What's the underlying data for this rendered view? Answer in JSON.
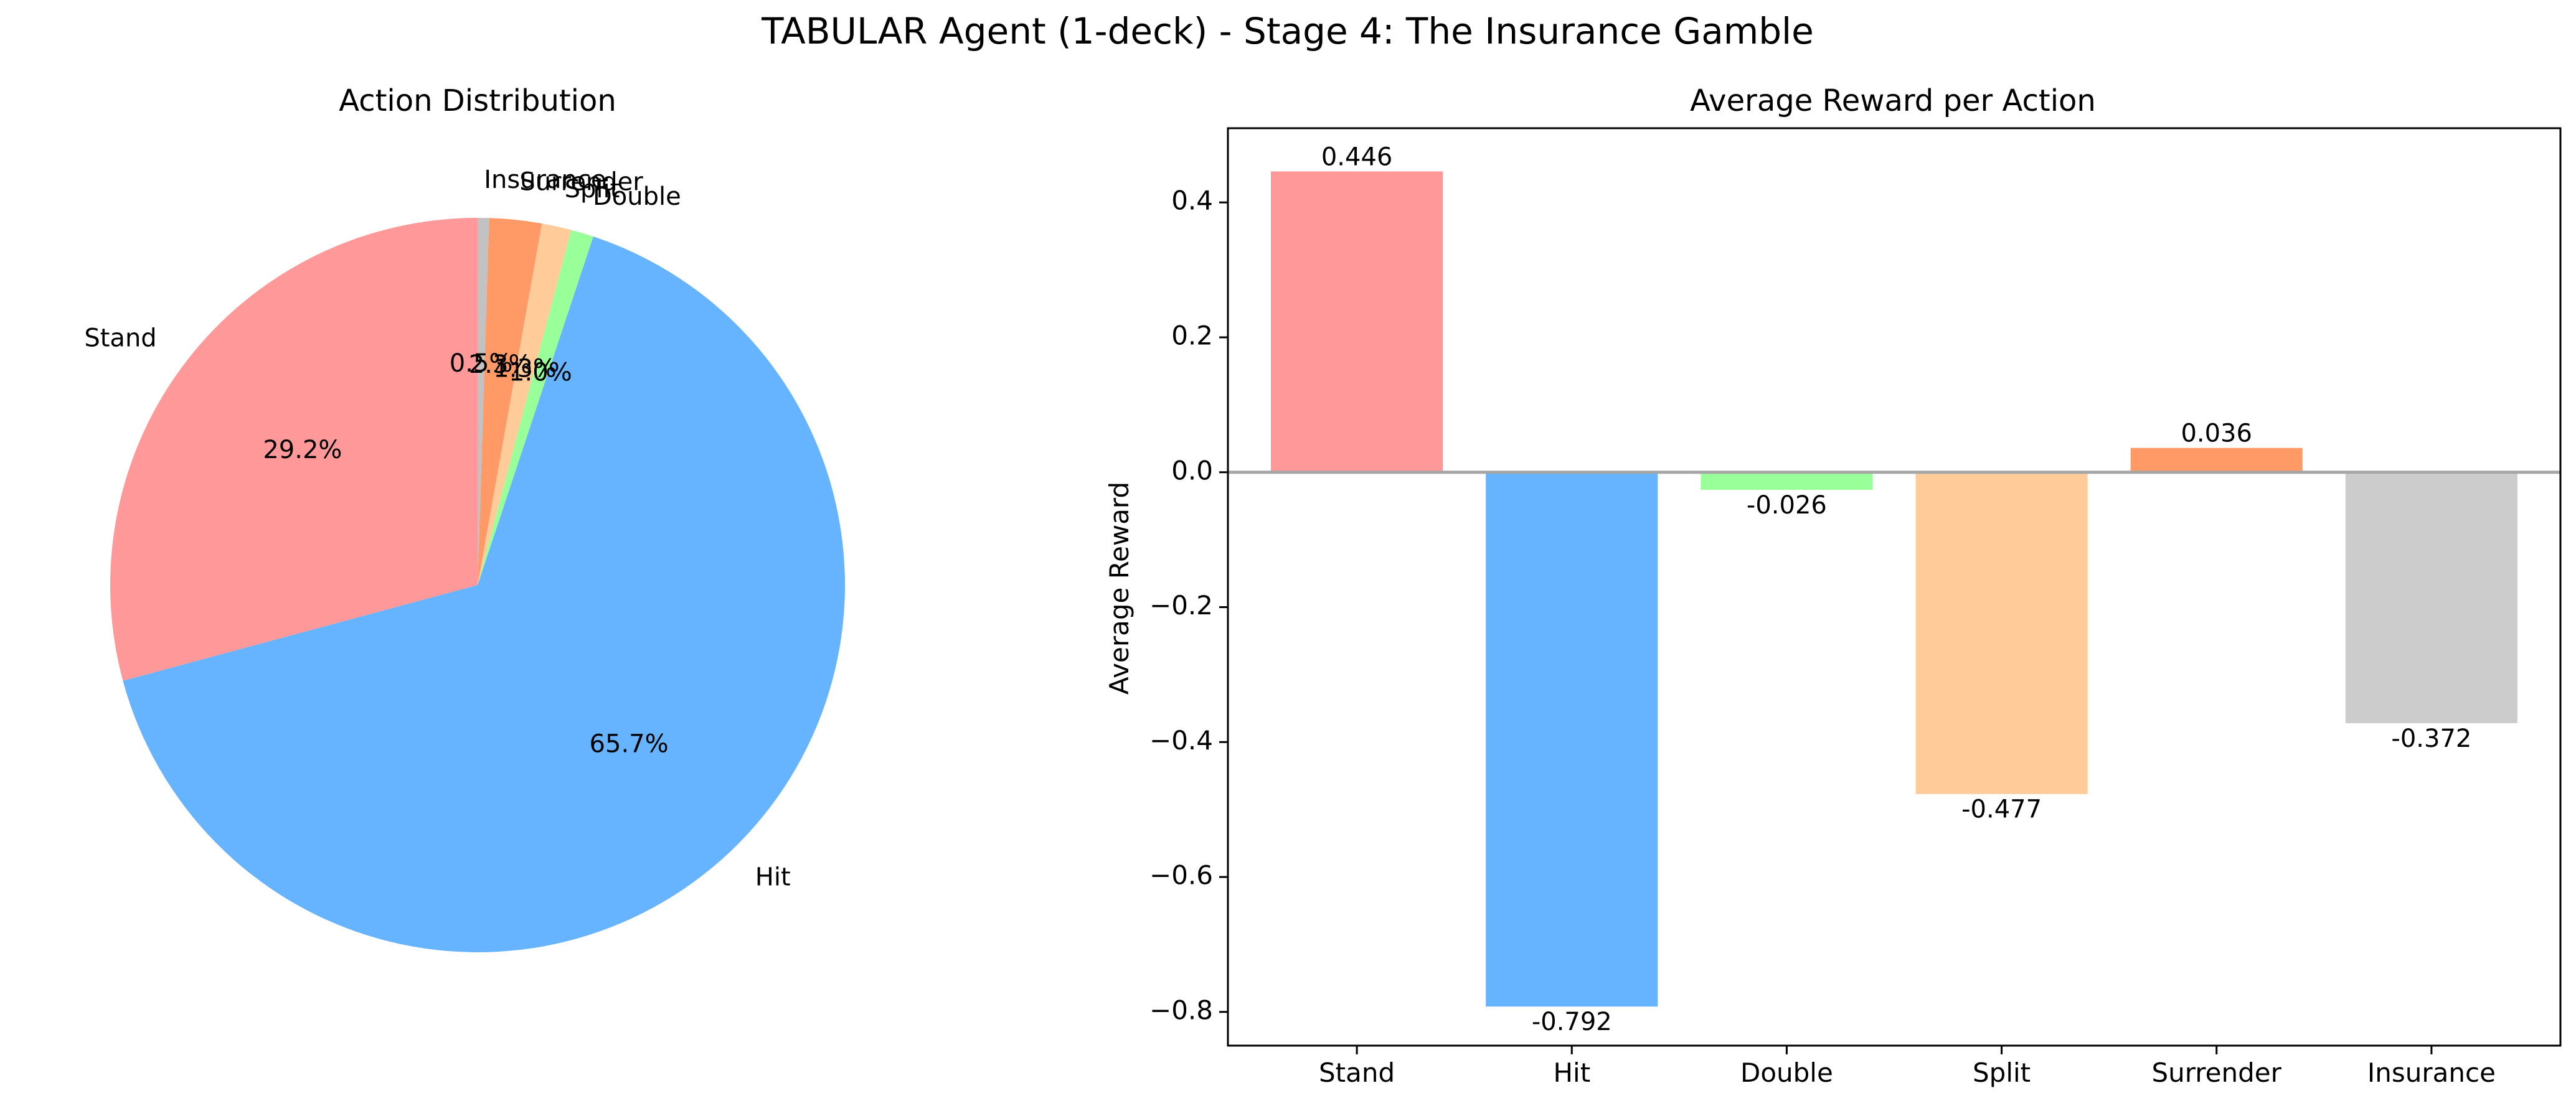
{
  "figure_title": "TABULAR Agent (1-deck) - Stage 4: The Insurance Gamble",
  "chart_data": [
    {
      "type": "pie",
      "title": "Action Distribution",
      "start_angle_deg": 90,
      "direction": "counterclockwise",
      "slices": [
        {
          "label": "Stand",
          "value": 29.2,
          "pct_label": "29.2%",
          "color": "#ff9999"
        },
        {
          "label": "Hit",
          "value": 65.7,
          "pct_label": "65.7%",
          "color": "#66b3ff"
        },
        {
          "label": "Double",
          "value": 1.0,
          "pct_label": "1.0%",
          "color": "#99ff99"
        },
        {
          "label": "Split",
          "value": 1.3,
          "pct_label": "1.3%",
          "color": "#ffcc99"
        },
        {
          "label": "Surrender",
          "value": 2.3,
          "pct_label": "2.3%",
          "color": "#ff9966"
        },
        {
          "label": "Insurance",
          "value": 0.5,
          "pct_label": "0.5%",
          "color": "#c2c2c2"
        }
      ]
    },
    {
      "type": "bar",
      "title": "Average Reward per Action",
      "xlabel": "",
      "ylabel": "Average Reward",
      "ylim": [
        -0.85,
        0.51
      ],
      "yticks": [
        -0.8,
        -0.6,
        -0.4,
        -0.2,
        0.0,
        0.2,
        0.4
      ],
      "ytick_labels": [
        "−0.8",
        "−0.6",
        "−0.4",
        "−0.2",
        "0.0",
        "0.2",
        "0.4"
      ],
      "categories": [
        "Stand",
        "Hit",
        "Double",
        "Split",
        "Surrender",
        "Insurance"
      ],
      "values": [
        0.446,
        -0.792,
        -0.026,
        -0.477,
        0.036,
        -0.372
      ],
      "value_labels": [
        "0.446",
        "-0.792",
        "-0.026",
        "-0.477",
        "0.036",
        "-0.372"
      ],
      "colors": [
        "#ff9999",
        "#66b3ff",
        "#99ff99",
        "#ffcc99",
        "#ff9966",
        "#cccccc"
      ],
      "zero_line_color": "#a6a6a6"
    }
  ]
}
